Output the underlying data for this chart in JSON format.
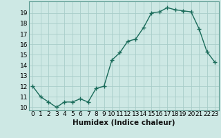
{
  "title": "",
  "xlabel": "Humidex (Indice chaleur)",
  "ylabel": "",
  "x": [
    0,
    1,
    2,
    3,
    4,
    5,
    6,
    7,
    8,
    9,
    10,
    11,
    12,
    13,
    14,
    15,
    16,
    17,
    18,
    19,
    20,
    21,
    22,
    23
  ],
  "y": [
    12,
    11,
    10.5,
    10,
    10.5,
    10.5,
    10.8,
    10.5,
    11.8,
    12,
    14.5,
    15.2,
    16.3,
    16.5,
    17.6,
    19.0,
    19.1,
    19.5,
    19.3,
    19.2,
    19.1,
    17.5,
    15.3,
    14.3
  ],
  "line_color": "#1a6b5a",
  "marker": "+",
  "marker_size": 4,
  "bg_color": "#cde8e4",
  "grid_color": "#a8cdc9",
  "tick_label_fontsize": 6.5,
  "xlabel_fontsize": 7.5,
  "ylim_min": 10,
  "ylim_max": 20,
  "yticks": [
    10,
    11,
    12,
    13,
    14,
    15,
    16,
    17,
    18,
    19
  ],
  "xticks": [
    0,
    1,
    2,
    3,
    4,
    5,
    6,
    7,
    8,
    9,
    10,
    11,
    12,
    13,
    14,
    15,
    16,
    17,
    18,
    19,
    20,
    21,
    22,
    23
  ],
  "spine_color": "#5a9a90"
}
